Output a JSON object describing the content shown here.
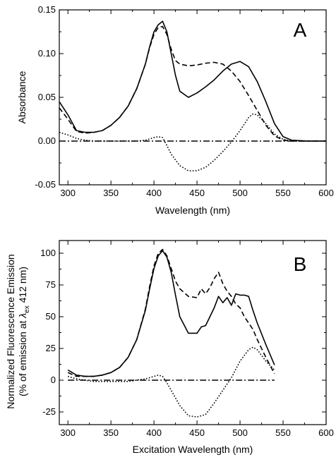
{
  "chart_data": [
    {
      "type": "line",
      "panel_label": "A",
      "xlabel": "Wavelength (nm)",
      "ylabel": "Absorbance",
      "xlim": [
        290,
        600
      ],
      "ylim": [
        -0.05,
        0.15
      ],
      "xticks": [
        300,
        350,
        400,
        450,
        500,
        550,
        600
      ],
      "yticks": [
        -0.05,
        0.0,
        0.05,
        0.1,
        0.15
      ],
      "ytick_labels": [
        "-0.05",
        "0.00",
        "0.05",
        "0.10",
        "0.15"
      ],
      "grid": false,
      "legend": "none",
      "series": [
        {
          "style": "solid",
          "color": "#000000",
          "x": [
            290,
            300,
            310,
            320,
            330,
            340,
            350,
            360,
            370,
            380,
            390,
            395,
            400,
            405,
            410,
            415,
            420,
            425,
            430,
            440,
            450,
            460,
            470,
            480,
            490,
            500,
            510,
            520,
            530,
            540,
            550,
            560,
            580,
            600
          ],
          "y": [
            0.045,
            0.03,
            0.012,
            0.01,
            0.01,
            0.012,
            0.018,
            0.027,
            0.04,
            0.06,
            0.088,
            0.108,
            0.125,
            0.133,
            0.137,
            0.125,
            0.1,
            0.075,
            0.057,
            0.05,
            0.055,
            0.062,
            0.07,
            0.08,
            0.088,
            0.091,
            0.085,
            0.068,
            0.045,
            0.02,
            0.005,
            0.001,
            0.0,
            0.0
          ]
        },
        {
          "style": "dashed",
          "color": "#000000",
          "x": [
            290,
            300,
            310,
            320,
            330,
            340,
            350,
            360,
            370,
            380,
            390,
            395,
            400,
            405,
            410,
            415,
            420,
            425,
            430,
            440,
            450,
            460,
            470,
            480,
            490,
            500,
            510,
            520,
            530,
            540,
            550,
            560,
            580,
            600
          ],
          "y": [
            0.038,
            0.025,
            0.011,
            0.009,
            0.01,
            0.012,
            0.018,
            0.027,
            0.04,
            0.06,
            0.088,
            0.107,
            0.122,
            0.13,
            0.131,
            0.122,
            0.105,
            0.092,
            0.088,
            0.086,
            0.087,
            0.089,
            0.09,
            0.088,
            0.08,
            0.068,
            0.052,
            0.035,
            0.018,
            0.006,
            0.001,
            0.0,
            0.0,
            0.0
          ]
        },
        {
          "style": "dotted",
          "color": "#000000",
          "x": [
            290,
            300,
            310,
            320,
            330,
            350,
            380,
            390,
            400,
            405,
            410,
            415,
            420,
            430,
            440,
            450,
            460,
            470,
            480,
            490,
            500,
            510,
            515,
            520,
            530,
            540,
            550,
            560,
            580,
            600
          ],
          "y": [
            0.01,
            0.007,
            0.003,
            0.001,
            0.0,
            0.0,
            0.0,
            0.001,
            0.004,
            0.005,
            0.004,
            -0.005,
            -0.015,
            -0.028,
            -0.034,
            -0.034,
            -0.03,
            -0.022,
            -0.012,
            -0.001,
            0.012,
            0.027,
            0.031,
            0.03,
            0.02,
            0.008,
            0.002,
            0.0,
            0.0,
            0.0
          ]
        },
        {
          "style": "dashdot",
          "color": "#000000",
          "x": [
            290,
            600
          ],
          "y": [
            0.0,
            0.0
          ]
        }
      ]
    },
    {
      "type": "line",
      "panel_label": "B",
      "xlabel": "Excitation Wavelength (nm)",
      "ylabel_line1": "Normalized Fluorescence Emission",
      "ylabel_line2_pre": "(% of emission at ",
      "ylabel_lambda": "λ",
      "ylabel_sub": "ex",
      "ylabel_line2_post": " 412 nm)",
      "xlim": [
        290,
        600
      ],
      "ylim": [
        -35,
        110
      ],
      "xticks": [
        300,
        350,
        400,
        450,
        500,
        550,
        600
      ],
      "yticks": [
        -25,
        0,
        25,
        50,
        75,
        100
      ],
      "ytick_labels": [
        "-25",
        "0",
        "25",
        "50",
        "75",
        "100"
      ],
      "grid": false,
      "legend": "none",
      "series": [
        {
          "style": "solid",
          "color": "#000000",
          "x": [
            300,
            310,
            320,
            330,
            340,
            350,
            360,
            370,
            380,
            390,
            395,
            400,
            405,
            410,
            415,
            420,
            425,
            430,
            440,
            450,
            455,
            460,
            465,
            470,
            475,
            480,
            485,
            490,
            495,
            500,
            505,
            510,
            515,
            520,
            530,
            540
          ],
          "y": [
            8,
            4,
            3,
            3,
            4,
            6,
            10,
            18,
            32,
            55,
            72,
            88,
            98,
            102,
            97,
            85,
            67,
            50,
            37,
            37,
            42,
            43,
            50,
            57,
            66,
            61,
            65,
            59,
            68,
            67,
            67,
            66,
            55,
            45,
            28,
            12
          ]
        },
        {
          "style": "dashed",
          "color": "#000000",
          "x": [
            300,
            310,
            320,
            330,
            340,
            350,
            360,
            370,
            380,
            390,
            395,
            400,
            405,
            410,
            415,
            420,
            425,
            430,
            440,
            450,
            455,
            460,
            465,
            470,
            475,
            480,
            485,
            490,
            495,
            500,
            505,
            510,
            515,
            520,
            530,
            540
          ],
          "y": [
            6,
            3,
            3,
            3,
            4,
            6,
            10,
            18,
            32,
            56,
            74,
            90,
            100,
            103,
            98,
            88,
            78,
            72,
            66,
            65,
            72,
            68,
            73,
            80,
            85,
            76,
            70,
            66,
            60,
            57,
            50,
            45,
            40,
            32,
            18,
            5
          ]
        },
        {
          "style": "dotted",
          "color": "#000000",
          "x": [
            300,
            310,
            320,
            330,
            340,
            350,
            360,
            370,
            380,
            390,
            400,
            405,
            410,
            415,
            420,
            430,
            440,
            450,
            460,
            470,
            480,
            490,
            500,
            510,
            515,
            520,
            530,
            540
          ],
          "y": [
            3,
            1,
            0,
            -1,
            -1,
            -1,
            -1,
            -1,
            0,
            1,
            3,
            4,
            3,
            -2,
            -8,
            -20,
            -28,
            -29,
            -27,
            -18,
            -8,
            2,
            15,
            24,
            26,
            24,
            15,
            8
          ]
        },
        {
          "style": "dashdot",
          "color": "#000000",
          "x": [
            300,
            540
          ],
          "y": [
            0,
            0
          ]
        }
      ]
    }
  ]
}
